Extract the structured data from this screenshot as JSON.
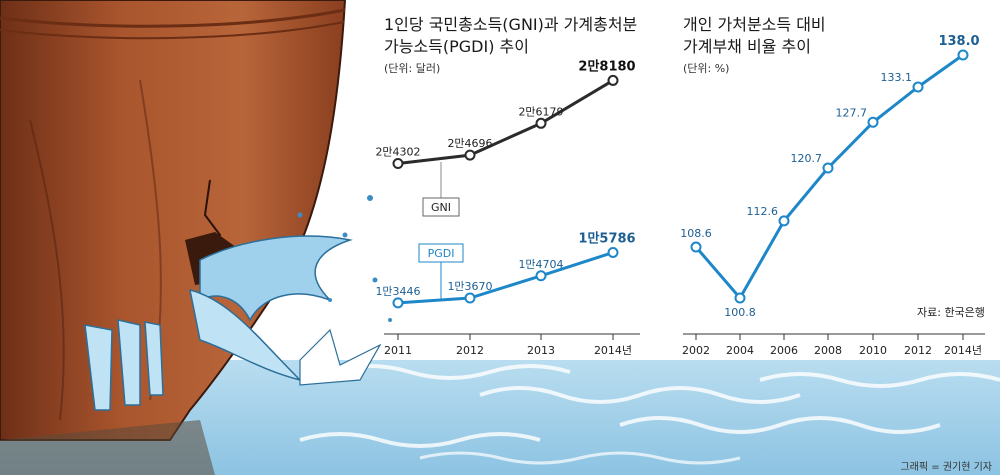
{
  "source_note": "자료: 한국은행",
  "credit": "그래픽 = 권기현 기자",
  "colors": {
    "gni_line": "#2b2b2b",
    "pgdi_line": "#1d87c9",
    "ratio_line": "#1d87c9",
    "ship_hull": "#a4512c",
    "water": "#a9d4ea"
  },
  "chart_data": [
    {
      "type": "line",
      "title_line1": "1인당 국민총소득(GNI)과 가계총처분",
      "title_line2": "가능소득(PGDI) 추이",
      "unit": "(단위: 달러)",
      "categories": [
        "2011",
        "2012",
        "2013",
        "2014년"
      ],
      "series": [
        {
          "name": "GNI",
          "values": [
            24302,
            24696,
            26179,
            28180
          ],
          "labels": [
            "2만4302",
            "2만4696",
            "2만6179",
            "2만8180"
          ]
        },
        {
          "name": "PGDI",
          "values": [
            13446,
            13670,
            14704,
            15786
          ],
          "labels": [
            "1만3446",
            "1만3670",
            "1만4704",
            "1만5786"
          ]
        }
      ]
    },
    {
      "type": "line",
      "title_line1": "개인 가처분소득 대비",
      "title_line2": "가계부채 비율 추이",
      "unit": "(단위: %)",
      "categories": [
        "2002",
        "2004",
        "2006",
        "2008",
        "2010",
        "2012",
        "2014년"
      ],
      "values": [
        108.6,
        100.8,
        112.6,
        120.7,
        127.7,
        133.1,
        138.0
      ],
      "labels": [
        "108.6",
        "100.8",
        "112.6",
        "120.7",
        "127.7",
        "133.1",
        "138.0"
      ]
    }
  ]
}
